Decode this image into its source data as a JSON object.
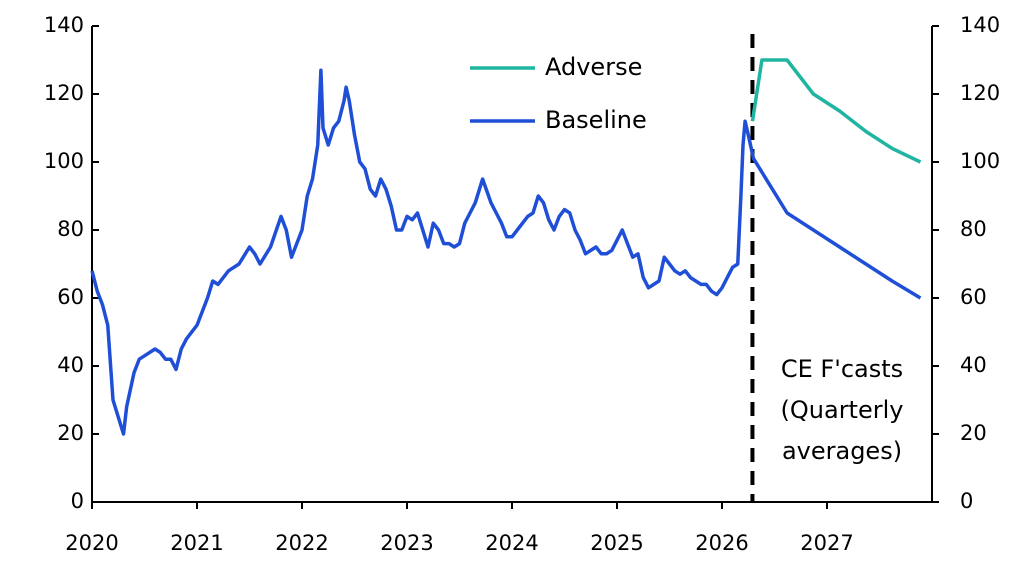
{
  "chart_data": {
    "type": "line",
    "xlim": [
      2020,
      2028
    ],
    "xticks": [
      2020,
      2021,
      2022,
      2023,
      2024,
      2025,
      2026,
      2027
    ],
    "ylim": [
      0,
      140
    ],
    "yticks": [
      0,
      20,
      40,
      60,
      80,
      100,
      120,
      140
    ],
    "y2lim": [
      0,
      140
    ],
    "y2ticks": [
      0,
      20,
      40,
      60,
      80,
      100,
      120,
      140
    ],
    "forecast_start": 2026.29,
    "annotation": [
      "CE F'casts",
      "(Quarterly",
      "averages)"
    ],
    "series": [
      {
        "name": "Adverse",
        "color": "#1fb5a0",
        "x": [
          2026.29,
          2026.38,
          2026.62,
          2026.87,
          2027.12,
          2027.37,
          2027.62,
          2027.89
        ],
        "values": [
          112,
          130,
          130,
          120,
          115,
          109,
          104,
          100
        ]
      },
      {
        "name": "Baseline",
        "color": "#1f4fd6",
        "x": [
          2020.0,
          2020.05,
          2020.1,
          2020.15,
          2020.2,
          2020.25,
          2020.3,
          2020.33,
          2020.4,
          2020.45,
          2020.5,
          2020.6,
          2020.65,
          2020.7,
          2020.75,
          2020.8,
          2020.85,
          2020.9,
          2021.0,
          2021.1,
          2021.15,
          2021.2,
          2021.3,
          2021.4,
          2021.5,
          2021.55,
          2021.6,
          2021.7,
          2021.8,
          2021.85,
          2021.9,
          2021.95,
          2022.0,
          2022.05,
          2022.1,
          2022.15,
          2022.18,
          2022.2,
          2022.25,
          2022.3,
          2022.35,
          2022.4,
          2022.42,
          2022.45,
          2022.5,
          2022.55,
          2022.6,
          2022.65,
          2022.7,
          2022.75,
          2022.8,
          2022.85,
          2022.9,
          2022.95,
          2023.0,
          2023.05,
          2023.1,
          2023.15,
          2023.2,
          2023.25,
          2023.3,
          2023.35,
          2023.4,
          2023.45,
          2023.5,
          2023.55,
          2023.6,
          2023.65,
          2023.7,
          2023.72,
          2023.8,
          2023.85,
          2023.9,
          2023.95,
          2024.0,
          2024.05,
          2024.1,
          2024.15,
          2024.2,
          2024.25,
          2024.3,
          2024.35,
          2024.4,
          2024.45,
          2024.5,
          2024.55,
          2024.6,
          2024.65,
          2024.7,
          2024.75,
          2024.8,
          2024.85,
          2024.9,
          2024.95,
          2025.0,
          2025.05,
          2025.1,
          2025.15,
          2025.2,
          2025.25,
          2025.3,
          2025.35,
          2025.4,
          2025.45,
          2025.5,
          2025.55,
          2025.6,
          2025.65,
          2025.7,
          2025.75,
          2025.8,
          2025.85,
          2025.9,
          2025.95,
          2026.0,
          2026.05,
          2026.1,
          2026.15,
          2026.18,
          2026.2,
          2026.22,
          2026.25,
          2026.3,
          2026.62,
          2026.87,
          2027.12,
          2027.37,
          2027.62,
          2027.89
        ],
        "values": [
          68,
          62,
          58,
          52,
          30,
          25,
          20,
          28,
          38,
          42,
          43,
          45,
          44,
          42,
          42,
          39,
          45,
          48,
          52,
          60,
          65,
          64,
          68,
          70,
          75,
          73,
          70,
          75,
          84,
          80,
          72,
          76,
          80,
          90,
          95,
          105,
          127,
          110,
          105,
          110,
          112,
          118,
          122,
          118,
          108,
          100,
          98,
          92,
          90,
          95,
          92,
          87,
          80,
          80,
          84,
          83,
          85,
          80,
          75,
          82,
          80,
          76,
          76,
          75,
          76,
          82,
          85,
          88,
          93,
          95,
          88,
          85,
          82,
          78,
          78,
          80,
          82,
          84,
          85,
          90,
          88,
          83,
          80,
          84,
          86,
          85,
          80,
          77,
          73,
          74,
          75,
          73,
          73,
          74,
          77,
          80,
          76,
          72,
          73,
          66,
          63,
          64,
          65,
          72,
          70,
          68,
          67,
          68,
          66,
          65,
          64,
          64,
          62,
          61,
          63,
          66,
          69,
          70,
          90,
          105,
          112,
          108,
          101,
          85,
          80,
          75,
          70,
          65,
          60
        ]
      }
    ]
  }
}
